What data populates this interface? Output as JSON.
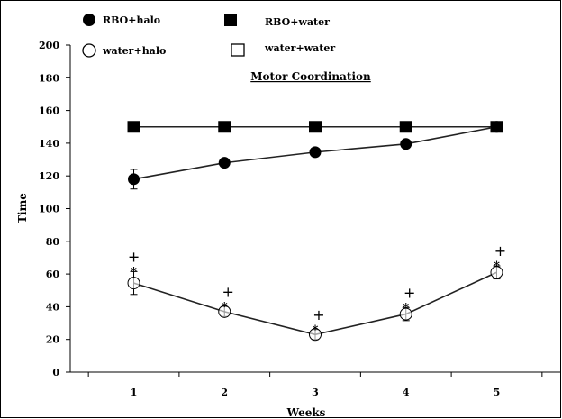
{
  "chart_data": {
    "type": "line",
    "title": "Motor Coordination",
    "xlabel": "Weeks",
    "ylabel": "Time",
    "categories": [
      "1",
      "2",
      "3",
      "4",
      "5"
    ],
    "x": [
      1,
      2,
      3,
      4,
      5
    ],
    "xlim": [
      0.3,
      5.7
    ],
    "ylim": [
      0,
      200
    ],
    "y_ticks": [
      0,
      20,
      40,
      60,
      80,
      100,
      120,
      140,
      160,
      180,
      200
    ],
    "y_tick_labels": [
      "0",
      "20",
      "40",
      "60",
      "80",
      "100",
      "120",
      "140",
      "160",
      "180",
      "200"
    ],
    "grid": false,
    "legend_position": "top",
    "series": [
      {
        "name": "RBO+halo",
        "marker": "filled-circle",
        "values": [
          118,
          128,
          134.5,
          139.5,
          150
        ],
        "error": [
          6,
          0,
          0,
          0,
          0
        ]
      },
      {
        "name": "RBO+water",
        "marker": "filled-square",
        "values": [
          150,
          150,
          150,
          150,
          150
        ],
        "error": [
          0,
          0,
          0,
          0,
          0
        ]
      },
      {
        "name": "water+halo",
        "marker": "open-circle",
        "values": [
          54.5,
          37,
          23,
          35.5,
          61
        ],
        "error": [
          7,
          3,
          3,
          4,
          4
        ]
      },
      {
        "name": "water+water",
        "marker": "open-square",
        "values": [
          150,
          150,
          150,
          150,
          150
        ],
        "error": [
          0,
          0,
          0,
          0,
          0
        ]
      }
    ],
    "annotations": {
      "star_symbol": "*",
      "plus_symbol": "+",
      "marked_series": "water+halo",
      "marked_x": [
        1,
        2,
        3,
        4,
        5
      ]
    }
  },
  "colors": {
    "line": "#222222",
    "marker_fill": "#000000",
    "open_fill": "#ffffff"
  }
}
